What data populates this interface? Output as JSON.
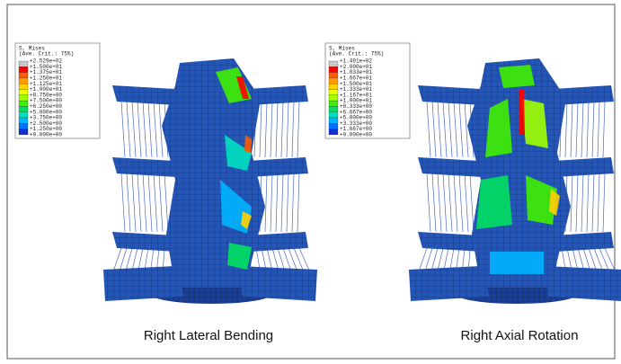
{
  "panels": [
    {
      "legend": {
        "title": "S, Mises",
        "subtitle": "(Ave. Crit.: 75%)",
        "labels": [
          "+2.529e+02",
          "+1.500e+01",
          "+1.375e+01",
          "+1.250e+01",
          "+1.125e+01",
          "+1.000e+01",
          "+8.750e+00",
          "+7.500e+00",
          "+6.250e+00",
          "+5.000e+00",
          "+3.750e+00",
          "+2.500e+00",
          "+1.250e+00",
          "+0.000e+00"
        ]
      },
      "caption": "Right Lateral Bending"
    },
    {
      "legend": {
        "title": "S, Mises",
        "subtitle": "(Ave. Crit.: 75%)",
        "labels": [
          "+1.491e+02",
          "+2.000e+01",
          "+1.833e+01",
          "+1.667e+01",
          "+1.500e+01",
          "+1.333e+01",
          "+1.167e+01",
          "+1.000e+01",
          "+8.333e+00",
          "+6.667e+00",
          "+5.000e+00",
          "+3.333e+00",
          "+1.667e+00",
          "+0.000e+00"
        ]
      },
      "caption": "Right Axial Rotation"
    }
  ]
}
